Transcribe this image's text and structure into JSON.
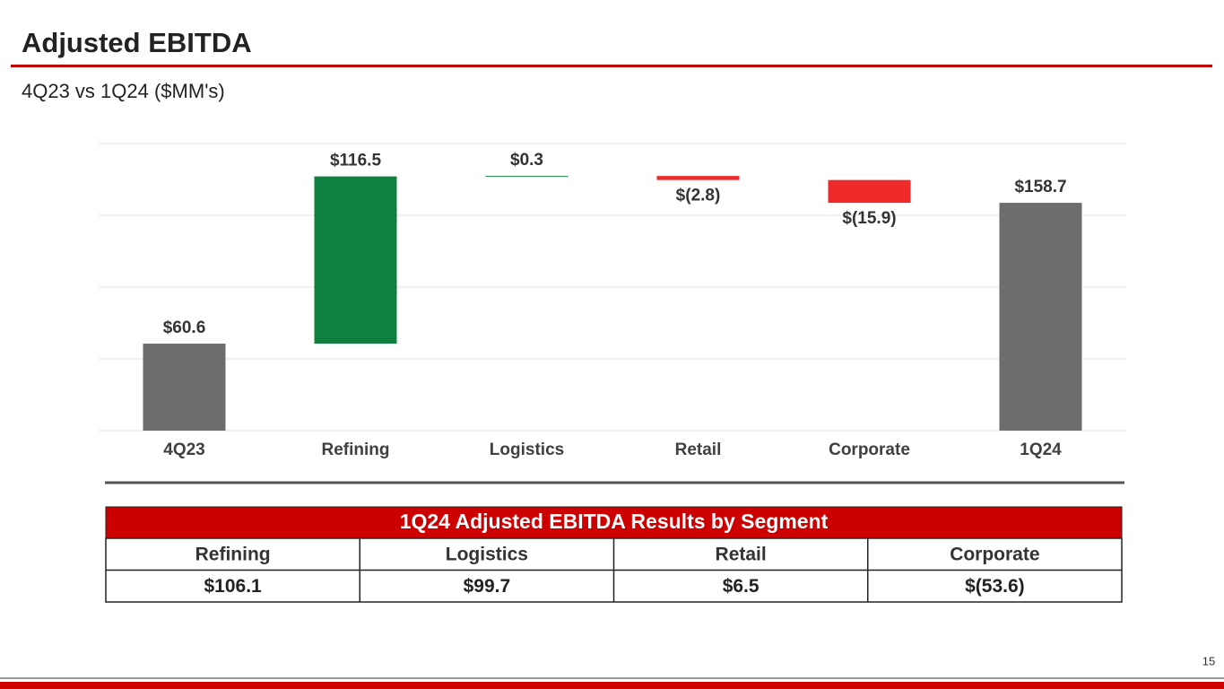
{
  "header": {
    "title": "Adjusted EBITDA",
    "subtitle": "4Q23 vs 1Q24  ($MM's)"
  },
  "chart_data": {
    "type": "waterfall",
    "categories": [
      "4Q23",
      "Refining",
      "Logistics",
      "Retail",
      "Corporate",
      "1Q24"
    ],
    "values": [
      60.6,
      116.5,
      0.3,
      -2.8,
      -15.9,
      158.7
    ],
    "value_labels": [
      "$60.6",
      "$116.5",
      "$0.3",
      "$(2.8)",
      "$(15.9)",
      "$158.7"
    ],
    "totals": [
      true,
      false,
      false,
      false,
      false,
      true
    ],
    "colors": {
      "total": "#6d6d6d",
      "increase": "#108040",
      "decrease": "#ee2a2a"
    },
    "ylim": [
      0,
      200
    ],
    "yticks": [
      0,
      50,
      100,
      150,
      200
    ],
    "grid": true
  },
  "table": {
    "title": "1Q24 Adjusted EBITDA Results by Segment",
    "columns": [
      "Refining",
      "Logistics",
      "Retail",
      "Corporate"
    ],
    "rows": [
      [
        "$106.1",
        "$99.7",
        "$6.5",
        "$(53.6)"
      ]
    ]
  },
  "footer": {
    "page": "15"
  }
}
